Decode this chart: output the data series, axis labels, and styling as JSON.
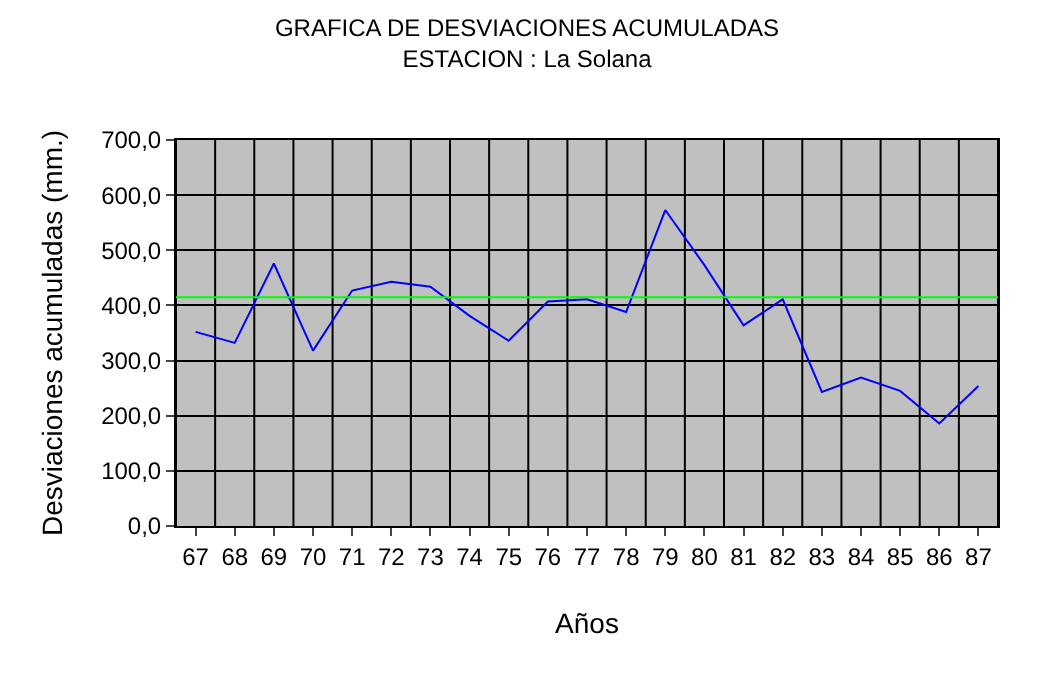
{
  "chart_data": {
    "type": "line",
    "title": "GRAFICA DE DESVIACIONES ACUMULADAS\nESTACION : La Solana",
    "xlabel": "Años",
    "ylabel": "Desviaciones acumuladas (mm.)",
    "categories": [
      "67",
      "68",
      "69",
      "70",
      "71",
      "72",
      "73",
      "74",
      "75",
      "76",
      "77",
      "78",
      "79",
      "80",
      "81",
      "82",
      "83",
      "84",
      "85",
      "86",
      "87"
    ],
    "series": [
      {
        "color": "#0000ff",
        "values": [
          352,
          332,
          476,
          318,
          427,
          443,
          434,
          381,
          336,
          407,
          411,
          388,
          573,
          473,
          364,
          411,
          243,
          269,
          245,
          186,
          254
        ]
      }
    ],
    "ylim": [
      0,
      700
    ],
    "yticks": [
      {
        "value": 0,
        "label": "0,0"
      },
      {
        "value": 100,
        "label": "100,0"
      },
      {
        "value": 200,
        "label": "200,0"
      },
      {
        "value": 300,
        "label": "300,0"
      },
      {
        "value": 400,
        "label": "400,0"
      },
      {
        "value": 500,
        "label": "500,0"
      },
      {
        "value": 600,
        "label": "600,0"
      },
      {
        "value": 700,
        "label": "700,0"
      }
    ],
    "ref_lines": [
      {
        "axis": "y",
        "value": 415,
        "color": "#00ff00"
      }
    ],
    "grid": true,
    "marker": "none",
    "line_style": "solid"
  }
}
